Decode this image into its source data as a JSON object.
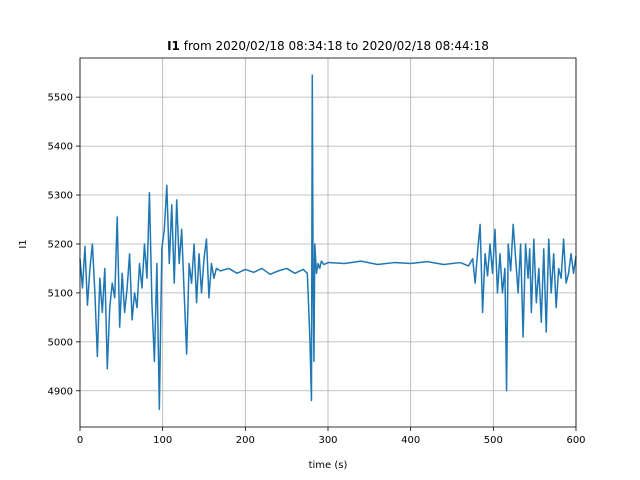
{
  "chart_data": {
    "type": "line",
    "title": {
      "bold": "I1",
      "rest": " from 2020/02/18 08:34:18 to 2020/02/18 08:44:18"
    },
    "xlabel": "time (s)",
    "ylabel": "I1",
    "xlim": [
      0,
      600
    ],
    "ylim": [
      4826,
      5580
    ],
    "x_ticks": [
      0,
      100,
      200,
      300,
      400,
      500,
      600
    ],
    "y_ticks": [
      4900,
      5000,
      5100,
      5200,
      5300,
      5400,
      5500
    ],
    "grid": true,
    "line_color": "#1f77b4",
    "series": [
      {
        "x": [
          0,
          3,
          6,
          9,
          12,
          15,
          18,
          21,
          24,
          27,
          30,
          33,
          36,
          39,
          42,
          45,
          48,
          51,
          54,
          57,
          60,
          63,
          66,
          69,
          72,
          75,
          78,
          81,
          84,
          87,
          90,
          93,
          96,
          99,
          102,
          105,
          108,
          111,
          114,
          117,
          120,
          123,
          126,
          129,
          132,
          135,
          138,
          141,
          144,
          147,
          150,
          153,
          156,
          159,
          162,
          165,
          170,
          180,
          190,
          200,
          210,
          220,
          230,
          240,
          250,
          260,
          270,
          275,
          278,
          280,
          281,
          282,
          283,
          284,
          286,
          288,
          290,
          292,
          295,
          300,
          320,
          340,
          360,
          380,
          400,
          420,
          440,
          460,
          470,
          475,
          478,
          481,
          484,
          487,
          490,
          493,
          496,
          499,
          502,
          505,
          508,
          511,
          514,
          516,
          518,
          521,
          524,
          527,
          530,
          533,
          536,
          539,
          542,
          544,
          546,
          549,
          552,
          555,
          558,
          561,
          564,
          567,
          570,
          573,
          576,
          579,
          582,
          585,
          588,
          591,
          594,
          597,
          600
        ],
        "y": [
          5170,
          5110,
          5195,
          5075,
          5150,
          5200,
          5100,
          4970,
          5130,
          5060,
          5150,
          4945,
          5070,
          5120,
          5090,
          5255,
          5030,
          5140,
          5060,
          5110,
          5180,
          5045,
          5100,
          5070,
          5160,
          5110,
          5200,
          5130,
          5305,
          5080,
          4960,
          5160,
          4862,
          5190,
          5230,
          5320,
          5160,
          5280,
          5120,
          5290,
          5160,
          5230,
          5100,
          4975,
          5160,
          5120,
          5200,
          5080,
          5180,
          5100,
          5170,
          5210,
          5090,
          5160,
          5130,
          5150,
          5145,
          5150,
          5140,
          5148,
          5142,
          5150,
          5138,
          5145,
          5150,
          5140,
          5148,
          5140,
          5010,
          4880,
          5545,
          5120,
          4960,
          5200,
          5140,
          5160,
          5150,
          5165,
          5158,
          5162,
          5160,
          5165,
          5158,
          5162,
          5160,
          5164,
          5158,
          5162,
          5155,
          5170,
          5120,
          5185,
          5240,
          5060,
          5180,
          5135,
          5200,
          5140,
          5230,
          5100,
          5180,
          5100,
          5150,
          4900,
          5200,
          5145,
          5240,
          5170,
          5100,
          5200,
          5010,
          5200,
          5130,
          5190,
          5060,
          5210,
          5080,
          5150,
          5040,
          5190,
          5020,
          5210,
          5100,
          5180,
          5070,
          5150,
          5130,
          5210,
          5120,
          5140,
          5180,
          5140,
          5175
        ]
      }
    ]
  }
}
